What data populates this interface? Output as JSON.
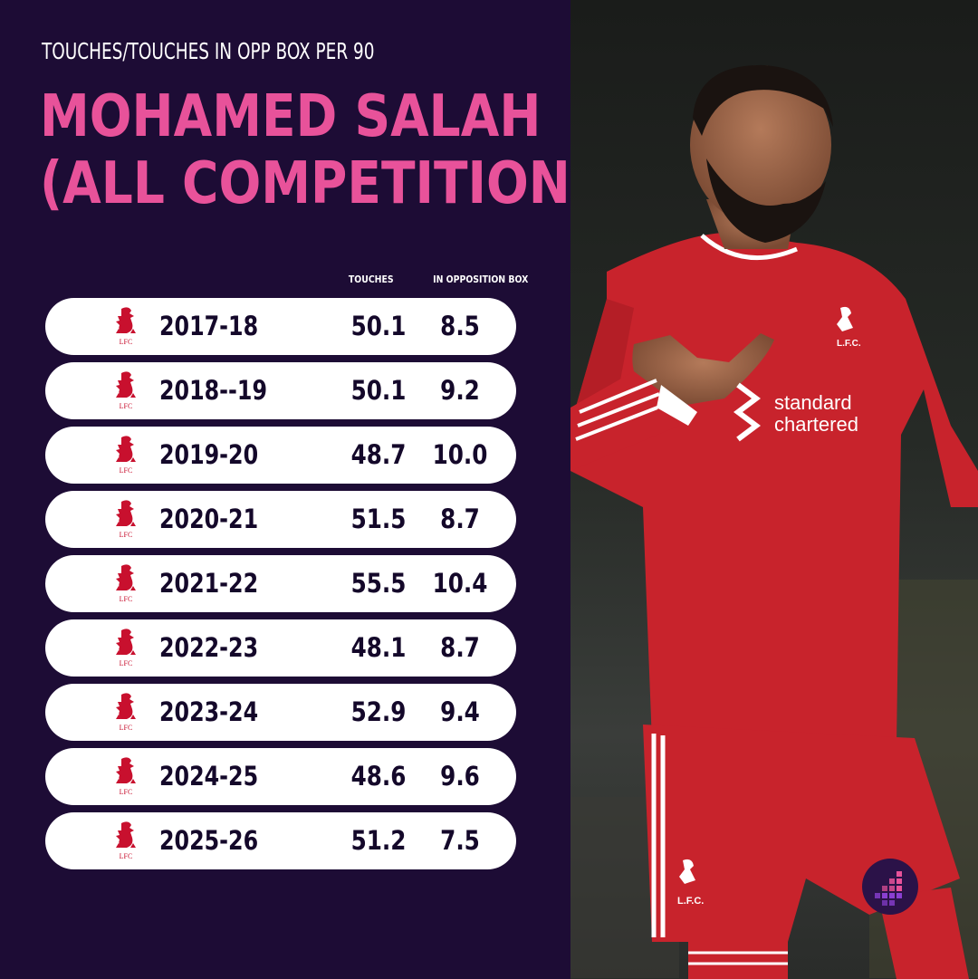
{
  "header": {
    "subtitle": "TOUCHES/TOUCHES IN OPP BOX PER 90",
    "title_line1": "MOHAMED SALAH",
    "title_line2": "(ALL COMPETITIONS)"
  },
  "columns": {
    "touches": "TOUCHES",
    "box": "IN OPPOSITION BOX"
  },
  "rows": [
    {
      "crest": "LFC",
      "season": "2017-18",
      "touches": "50.1",
      "box": "8.5"
    },
    {
      "crest": "LFC",
      "season": "2018--19",
      "touches": "50.1",
      "box": "9.2"
    },
    {
      "crest": "LFC",
      "season": "2019-20",
      "touches": "48.7",
      "box": "10.0"
    },
    {
      "crest": "LFC",
      "season": "2020-21",
      "touches": "51.5",
      "box": "8.7"
    },
    {
      "crest": "LFC",
      "season": "2021-22",
      "touches": "55.5",
      "box": "10.4"
    },
    {
      "crest": "LFC",
      "season": "2022-23",
      "touches": "48.1",
      "box": "8.7"
    },
    {
      "crest": "LFC",
      "season": "2023-24",
      "touches": "52.9",
      "box": "9.4"
    },
    {
      "crest": "LFC",
      "season": "2024-25",
      "touches": "48.6",
      "box": "9.6"
    },
    {
      "crest": "LFC",
      "season": "2025-26",
      "touches": "51.2",
      "box": "7.5"
    }
  ],
  "photo": {
    "shirt_sponsor": "standard chartered",
    "shirt_crest": "L.F.C.",
    "shorts_crest": "L.F.C."
  },
  "colors": {
    "background": "#1d0c35",
    "accent": "#e8529a",
    "row_bg": "#ffffff",
    "text_dark": "#14082a",
    "crest_red": "#c8102e"
  },
  "icons": {
    "crest": "liverbird-crest-icon",
    "brand": "brand-logo-icon"
  }
}
